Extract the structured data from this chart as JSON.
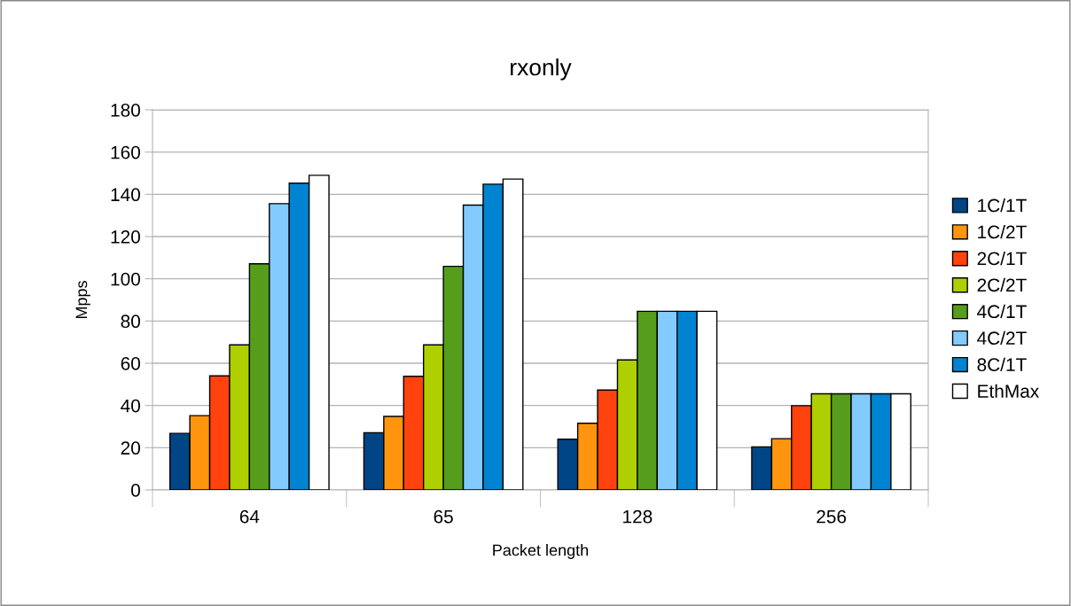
{
  "chart_data": {
    "type": "bar",
    "title": "rxonly",
    "xlabel": "Packet length",
    "ylabel": "Mpps",
    "categories": [
      "64",
      "65",
      "128",
      "256"
    ],
    "series": [
      {
        "name": "1C/1T",
        "color": "#004586",
        "values": [
          26.8,
          27.1,
          24.0,
          20.4
        ]
      },
      {
        "name": "1C/2T",
        "color": "#ff950e",
        "values": [
          35.2,
          34.8,
          31.6,
          24.3
        ]
      },
      {
        "name": "2C/1T",
        "color": "#ff420e",
        "values": [
          54.0,
          53.8,
          47.3,
          39.9
        ]
      },
      {
        "name": "2C/2T",
        "color": "#aecf00",
        "values": [
          68.7,
          68.7,
          61.6,
          45.5
        ]
      },
      {
        "name": "4C/1T",
        "color": "#579d1c",
        "values": [
          107.1,
          105.9,
          84.6,
          45.5
        ]
      },
      {
        "name": "4C/2T",
        "color": "#83caff",
        "values": [
          135.6,
          134.9,
          84.6,
          45.5
        ]
      },
      {
        "name": "8C/1T",
        "color": "#0084d1",
        "values": [
          145.3,
          144.8,
          84.6,
          45.5
        ]
      },
      {
        "name": "EthMax",
        "color": "#ffffff",
        "values": [
          149.0,
          147.2,
          84.6,
          45.5
        ]
      }
    ],
    "ylim": [
      0,
      180
    ],
    "yticks": [
      0,
      20,
      40,
      60,
      80,
      100,
      120,
      140,
      160,
      180
    ],
    "grid": "y",
    "legend": "right"
  }
}
